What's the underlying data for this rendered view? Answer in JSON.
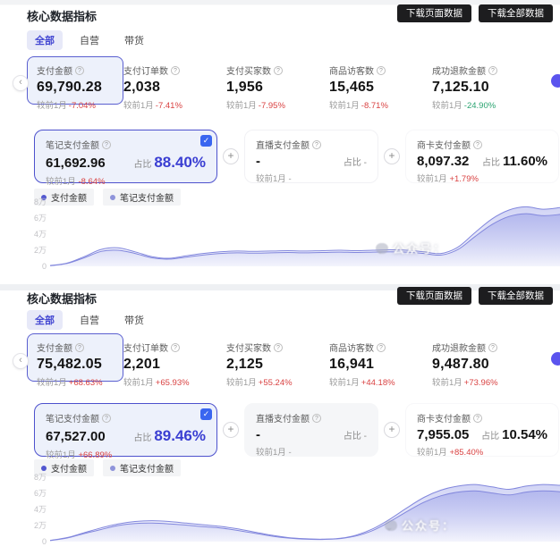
{
  "page": {
    "download_page_label": "下载页面数据",
    "download_all_label": "下载全部数据",
    "watermark": "公众号：",
    "accent_color": "#4347d2",
    "negative_color": "#d94242",
    "positive_green_color": "#2ba471"
  },
  "panels": [
    {
      "title": "核心数据指标",
      "tabs": [
        {
          "label": "全部",
          "active": true
        },
        {
          "label": "自营",
          "active": false
        },
        {
          "label": "带货",
          "active": false
        }
      ],
      "stats": [
        {
          "label": "支付金额",
          "value": "69,790.28",
          "delta_label": "较前1月",
          "delta": "-7.04%",
          "delta_color": "#d94242"
        },
        {
          "label": "支付订单数",
          "value": "2,038",
          "delta_label": "较前1月",
          "delta": "-7.41%",
          "delta_color": "#d94242"
        },
        {
          "label": "支付买家数",
          "value": "1,956",
          "delta_label": "较前1月",
          "delta": "-7.95%",
          "delta_color": "#d94242"
        },
        {
          "label": "商品访客数",
          "value": "15,465",
          "delta_label": "较前1月",
          "delta": "-8.71%",
          "delta_color": "#d94242"
        },
        {
          "label": "成功退款金额",
          "value": "7,125.10",
          "delta_label": "较前1月",
          "delta": "-24.90%",
          "delta_color": "#2ba471"
        }
      ],
      "breakdown": {
        "note": {
          "label": "笔记支付金额",
          "value": "61,692.96",
          "share_label": "占比",
          "share": "88.40%",
          "delta_label": "较前1月",
          "delta": "-8.64%",
          "delta_color": "#d94242"
        },
        "live": {
          "label": "直播支付金额",
          "value": "-",
          "delta_label": "较前1月",
          "delta": "-",
          "share_label": "占比",
          "share": "-"
        },
        "card": {
          "label": "商卡支付金额",
          "value": "8,097.32",
          "delta_label": "较前1月",
          "delta": "+1.79%",
          "delta_color": "#d94242",
          "share_label": "占比",
          "share": "11.60%"
        }
      },
      "legend": [
        "支付金额",
        "笔记支付金额"
      ]
    },
    {
      "title": "核心数据指标",
      "tabs": [
        {
          "label": "全部",
          "active": true
        },
        {
          "label": "自营",
          "active": false
        },
        {
          "label": "带货",
          "active": false
        }
      ],
      "stats": [
        {
          "label": "支付金额",
          "value": "75,482.05",
          "delta_label": "较前1月",
          "delta": "+68.63%",
          "delta_color": "#d94242"
        },
        {
          "label": "支付订单数",
          "value": "2,201",
          "delta_label": "较前1月",
          "delta": "+65.93%",
          "delta_color": "#d94242"
        },
        {
          "label": "支付买家数",
          "value": "2,125",
          "delta_label": "较前1月",
          "delta": "+55.24%",
          "delta_color": "#d94242"
        },
        {
          "label": "商品访客数",
          "value": "16,941",
          "delta_label": "较前1月",
          "delta": "+44.18%",
          "delta_color": "#d94242"
        },
        {
          "label": "成功退款金额",
          "value": "9,487.80",
          "delta_label": "较前1月",
          "delta": "+73.96%",
          "delta_color": "#d94242"
        }
      ],
      "breakdown": {
        "note": {
          "label": "笔记支付金额",
          "value": "67,527.00",
          "share_label": "占比",
          "share": "89.46%",
          "delta_label": "较前1月",
          "delta": "+66.89%",
          "delta_color": "#d94242"
        },
        "live": {
          "label": "直播支付金额",
          "value": "-",
          "delta_label": "较前1月",
          "delta": "-",
          "share_label": "占比",
          "share": "-"
        },
        "card": {
          "label": "商卡支付金额",
          "value": "7,955.05",
          "delta_label": "较前1月",
          "delta": "+85.40%",
          "delta_color": "#d94242",
          "share_label": "占比",
          "share": "10.54%"
        }
      },
      "legend": [
        "支付金额",
        "笔记支付金额"
      ]
    }
  ],
  "chart_data": [
    {
      "type": "area",
      "y_ticks": [
        "8万",
        "6万",
        "4万",
        "2万",
        "0"
      ],
      "y_max_wan": 8,
      "grid": false,
      "legend_position": "top-left",
      "stroke_color": "#8287dd",
      "fill_color": "#9aa0e8",
      "series": [
        {
          "name": "支付金额",
          "unit": "万",
          "values": [
            0.1,
            0.4,
            1.2,
            2.1,
            2.3,
            1.8,
            1.2,
            1.0,
            1.3,
            1.6,
            1.8,
            1.9,
            1.85,
            1.9,
            1.95,
            1.9,
            1.95,
            2.0,
            1.95,
            2.0,
            2.05,
            2.0,
            1.8,
            1.6,
            2.4,
            4.2,
            5.9,
            7.0,
            7.4,
            7.1,
            7.3
          ]
        },
        {
          "name": "笔记支付金额",
          "unit": "万",
          "values": [
            0.08,
            0.35,
            1.05,
            1.85,
            2.0,
            1.6,
            1.05,
            0.9,
            1.15,
            1.4,
            1.6,
            1.68,
            1.63,
            1.68,
            1.72,
            1.68,
            1.72,
            1.77,
            1.72,
            1.77,
            1.81,
            1.77,
            1.6,
            1.4,
            2.1,
            3.7,
            5.2,
            6.2,
            6.55,
            6.3,
            6.45
          ]
        }
      ]
    },
    {
      "type": "area",
      "y_ticks": [
        "8万",
        "6万",
        "4万",
        "2万",
        "0"
      ],
      "y_max_wan": 8,
      "grid": false,
      "legend_position": "top-left",
      "stroke_color": "#8287dd",
      "fill_color": "#9aa0e8",
      "series": [
        {
          "name": "支付金额",
          "unit": "万",
          "values": [
            0.15,
            0.5,
            1.1,
            1.7,
            2.2,
            2.5,
            2.6,
            2.5,
            2.3,
            2.1,
            1.9,
            1.6,
            1.2,
            0.8,
            0.5,
            0.35,
            0.3,
            0.4,
            0.8,
            1.6,
            2.8,
            4.2,
            5.5,
            6.4,
            6.9,
            7.1,
            6.8,
            6.5,
            6.9,
            7.1,
            7.0
          ]
        },
        {
          "name": "笔记支付金额",
          "unit": "万",
          "values": [
            0.13,
            0.45,
            1.0,
            1.5,
            2.0,
            2.25,
            2.3,
            2.2,
            2.05,
            1.85,
            1.7,
            1.4,
            1.05,
            0.7,
            0.45,
            0.3,
            0.27,
            0.36,
            0.7,
            1.4,
            2.5,
            3.75,
            4.9,
            5.7,
            6.15,
            6.3,
            6.05,
            5.8,
            6.15,
            6.3,
            6.2
          ]
        }
      ]
    }
  ]
}
